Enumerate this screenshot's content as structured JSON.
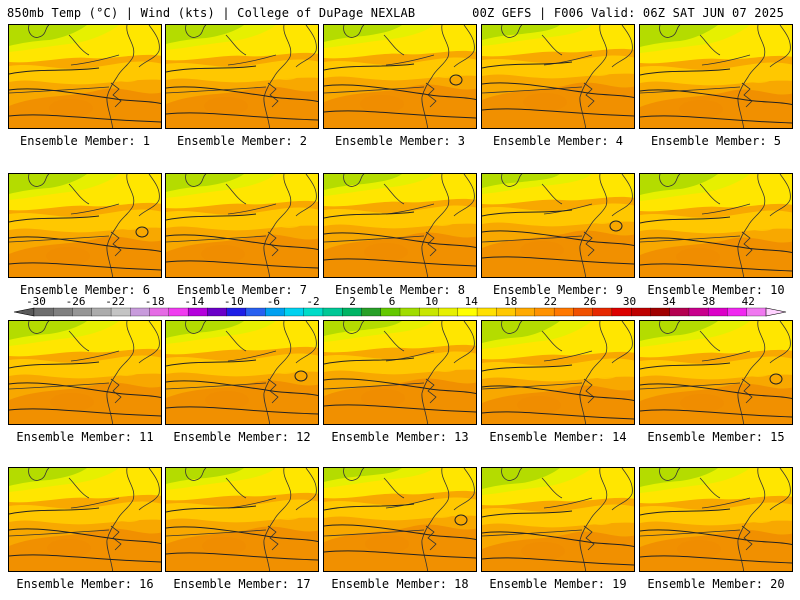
{
  "header": {
    "left": "850mb Temp (°C) | Wind (kts) | College of DuPage NEXLAB",
    "right": "00Z GEFS | F006 Valid: 06Z SAT JUN 07 2025"
  },
  "caption_prefix": "Ensemble Member: ",
  "members": [
    1,
    2,
    3,
    4,
    5,
    6,
    7,
    8,
    9,
    10,
    11,
    12,
    13,
    14,
    15,
    16,
    17,
    18,
    19,
    20
  ],
  "captions": [
    "Ensemble Member: 1",
    "Ensemble Member: 2",
    "Ensemble Member: 3",
    "Ensemble Member: 4",
    "Ensemble Member: 5",
    "Ensemble Member: 6",
    "Ensemble Member: 7",
    "Ensemble Member: 8",
    "Ensemble Member: 9",
    "Ensemble Member: 10",
    "Ensemble Member: 11",
    "Ensemble Member: 12",
    "Ensemble Member: 13",
    "Ensemble Member: 14",
    "Ensemble Member: 15",
    "Ensemble Member: 16",
    "Ensemble Member: 17",
    "Ensemble Member: 18",
    "Ensemble Member: 19",
    "Ensemble Member: 20"
  ],
  "colorbar": {
    "labels": [
      "-30",
      "-26",
      "-22",
      "-18",
      "-14",
      "-10",
      "-6",
      "-2",
      "2",
      "6",
      "10",
      "14",
      "18",
      "22",
      "26",
      "30",
      "34",
      "38",
      "42"
    ],
    "colors": [
      "#6e6e6e",
      "#808080",
      "#969696",
      "#acacac",
      "#c4c4c4",
      "#c89bdc",
      "#e56be5",
      "#f03cf0",
      "#b400dc",
      "#6a00c8",
      "#1e1ee6",
      "#2860f0",
      "#00a0f0",
      "#00d2f0",
      "#00dcc8",
      "#00c896",
      "#00b464",
      "#28a028",
      "#64c800",
      "#a0dc00",
      "#c8e600",
      "#e6f000",
      "#ffff00",
      "#ffe000",
      "#ffc800",
      "#ffaa00",
      "#ff9200",
      "#ff7800",
      "#f05000",
      "#e62800",
      "#dc0000",
      "#be0000",
      "#a00000",
      "#b40050",
      "#c8008c",
      "#dc00c8",
      "#f028f0",
      "#f078f0"
    ],
    "over_color": "#ffd2ff",
    "under_color": "#5a5a5a"
  },
  "palette": {
    "green": "#b4dc00",
    "yellow_green": "#e6f000",
    "yellow": "#ffe600",
    "light_orange": "#ffc800",
    "orange": "#f8a800",
    "dark_orange": "#f08c00"
  }
}
